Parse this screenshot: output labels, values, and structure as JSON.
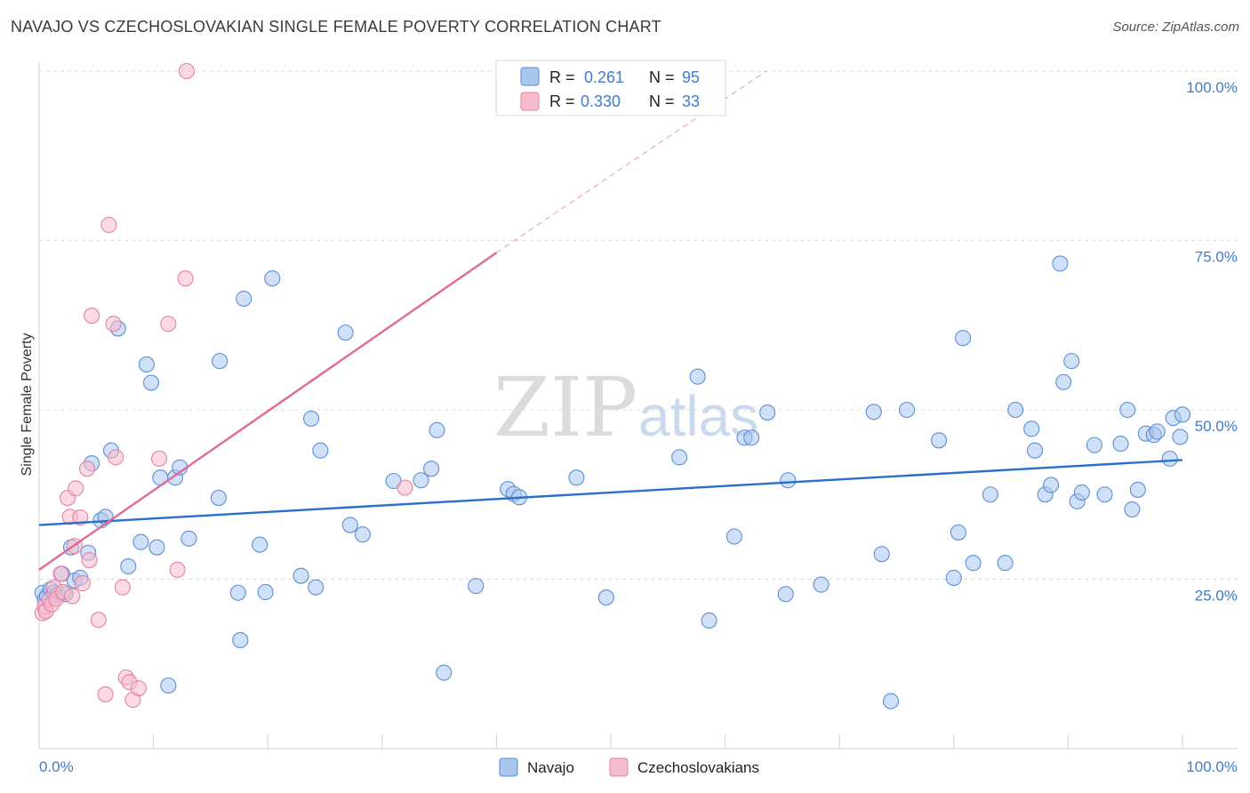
{
  "title": "NAVAJO VS CZECHOSLOVAKIAN SINGLE FEMALE POVERTY CORRELATION CHART",
  "source": "Source: ZipAtlas.com",
  "watermark": {
    "zip": "ZIP",
    "atlas": "atlas"
  },
  "colors": {
    "navajo_fill": "#a9c6ee",
    "navajo_stroke": "#5b8fd6",
    "navajo_line": "#2a6fc9",
    "czech_fill": "#f6bccd",
    "czech_stroke": "#e8819f",
    "czech_line": "#e06a92",
    "grid": "#dcdcdc",
    "axis_text": "#3d7dcc"
  },
  "legend": {
    "rows": [
      {
        "r_label": "R =",
        "r_value": "0.261",
        "n_label": "N =",
        "n_value": "95"
      },
      {
        "r_label": "R =",
        "r_value": "0.330",
        "n_label": "N =",
        "n_value": "33"
      }
    ]
  },
  "chart_data": {
    "type": "scatter",
    "title": "NAVAJO VS CZECHOSLOVAKIAN SINGLE FEMALE POVERTY CORRELATION CHART",
    "xlabel": "",
    "ylabel": "Single Female Poverty",
    "xlim": [
      0,
      100
    ],
    "ylim": [
      0,
      100
    ],
    "x_tick_labels": [
      "0.0%",
      "100.0%"
    ],
    "y_tick_labels": [
      "25.0%",
      "50.0%",
      "75.0%",
      "100.0%"
    ],
    "y_ticks": [
      25,
      50,
      75,
      100
    ],
    "grid": true,
    "legend_position": "bottom-center",
    "series": [
      {
        "name": "Navajo",
        "r": 0.261,
        "n": 95,
        "trend": {
          "x0": 0,
          "y0": 33.0,
          "x1": 100,
          "y1": 42.6
        },
        "points": [
          [
            0.3,
            23
          ],
          [
            0.5,
            22
          ],
          [
            0.7,
            22.5
          ],
          [
            1.0,
            23.5
          ],
          [
            1.3,
            23
          ],
          [
            1.6,
            22.7
          ],
          [
            2.0,
            25.8
          ],
          [
            2.3,
            22.8
          ],
          [
            2.8,
            29.7
          ],
          [
            3.1,
            24.8
          ],
          [
            3.6,
            25.2
          ],
          [
            4.3,
            28.9
          ],
          [
            4.6,
            42.1
          ],
          [
            5.4,
            33.7
          ],
          [
            5.8,
            34.2
          ],
          [
            6.3,
            44.0
          ],
          [
            6.9,
            62.0
          ],
          [
            7.8,
            26.9
          ],
          [
            8.9,
            30.5
          ],
          [
            9.4,
            56.7
          ],
          [
            9.8,
            54.0
          ],
          [
            10.3,
            29.7
          ],
          [
            10.6,
            40.0
          ],
          [
            11.3,
            9.3
          ],
          [
            11.9,
            40.0
          ],
          [
            12.3,
            41.5
          ],
          [
            13.1,
            31.0
          ],
          [
            15.8,
            57.2
          ],
          [
            15.7,
            37.0
          ],
          [
            17.4,
            23.0
          ],
          [
            17.6,
            16.0
          ],
          [
            17.9,
            66.4
          ],
          [
            19.3,
            30.1
          ],
          [
            19.8,
            23.1
          ],
          [
            20.4,
            69.4
          ],
          [
            22.9,
            25.5
          ],
          [
            23.8,
            48.7
          ],
          [
            24.2,
            23.8
          ],
          [
            24.6,
            44.0
          ],
          [
            26.8,
            61.4
          ],
          [
            27.2,
            33.0
          ],
          [
            28.3,
            31.6
          ],
          [
            31.0,
            39.5
          ],
          [
            33.4,
            39.6
          ],
          [
            34.3,
            41.3
          ],
          [
            34.8,
            47.0
          ],
          [
            35.4,
            11.2
          ],
          [
            38.2,
            24.0
          ],
          [
            41.0,
            38.3
          ],
          [
            41.5,
            37.6
          ],
          [
            42.0,
            37.1
          ],
          [
            47.0,
            40.0
          ],
          [
            49.6,
            22.3
          ],
          [
            56.0,
            43.0
          ],
          [
            57.6,
            54.9
          ],
          [
            58.6,
            18.9
          ],
          [
            60.8,
            31.3
          ],
          [
            61.7,
            45.9
          ],
          [
            62.3,
            45.9
          ],
          [
            63.7,
            49.6
          ],
          [
            65.3,
            22.8
          ],
          [
            65.5,
            39.6
          ],
          [
            68.4,
            24.2
          ],
          [
            73.0,
            49.7
          ],
          [
            73.7,
            28.7
          ],
          [
            74.5,
            7.0
          ],
          [
            75.9,
            50.0
          ],
          [
            78.7,
            45.5
          ],
          [
            80.0,
            25.2
          ],
          [
            80.4,
            31.9
          ],
          [
            80.8,
            60.6
          ],
          [
            81.7,
            27.4
          ],
          [
            83.2,
            37.5
          ],
          [
            84.5,
            27.4
          ],
          [
            85.4,
            50.0
          ],
          [
            86.8,
            47.2
          ],
          [
            87.1,
            44.0
          ],
          [
            88.0,
            37.5
          ],
          [
            88.5,
            38.9
          ],
          [
            89.3,
            71.6
          ],
          [
            89.6,
            54.1
          ],
          [
            90.3,
            57.2
          ],
          [
            90.8,
            36.5
          ],
          [
            91.2,
            37.8
          ],
          [
            92.3,
            44.8
          ],
          [
            93.2,
            37.5
          ],
          [
            94.6,
            45.0
          ],
          [
            95.2,
            50.0
          ],
          [
            95.6,
            35.3
          ],
          [
            96.1,
            38.2
          ],
          [
            96.8,
            46.5
          ],
          [
            97.5,
            46.3
          ],
          [
            97.8,
            46.8
          ],
          [
            98.9,
            42.8
          ],
          [
            99.2,
            48.8
          ],
          [
            99.8,
            46.0
          ],
          [
            100.0,
            49.3
          ]
        ]
      },
      {
        "name": "Czechoslovakians",
        "r": 0.33,
        "n": 33,
        "trend": {
          "x0": 0,
          "y0": 26.4,
          "x1": 40,
          "y1": 73.2
        },
        "trend_dashed": {
          "x0": 40,
          "y0": 73.2,
          "x1": 63.6,
          "y1": 100
        },
        "points": [
          [
            0.3,
            20.0
          ],
          [
            0.5,
            21.0
          ],
          [
            0.6,
            20.3
          ],
          [
            0.9,
            22.0
          ],
          [
            1.1,
            21.3
          ],
          [
            1.3,
            23.8
          ],
          [
            1.5,
            22.1
          ],
          [
            1.9,
            25.8
          ],
          [
            2.1,
            23.1
          ],
          [
            2.5,
            37.0
          ],
          [
            2.7,
            34.2
          ],
          [
            2.9,
            22.5
          ],
          [
            3.1,
            29.9
          ],
          [
            3.2,
            38.4
          ],
          [
            3.6,
            34.1
          ],
          [
            3.8,
            24.4
          ],
          [
            4.2,
            41.3
          ],
          [
            4.4,
            27.8
          ],
          [
            4.6,
            63.9
          ],
          [
            5.2,
            19.0
          ],
          [
            5.8,
            8.0
          ],
          [
            6.1,
            77.3
          ],
          [
            6.5,
            62.7
          ],
          [
            6.7,
            43.0
          ],
          [
            7.3,
            23.8
          ],
          [
            7.6,
            10.5
          ],
          [
            7.9,
            9.8
          ],
          [
            8.2,
            7.2
          ],
          [
            8.7,
            8.9
          ],
          [
            10.5,
            42.8
          ],
          [
            11.3,
            62.7
          ],
          [
            12.1,
            26.4
          ],
          [
            12.8,
            69.4
          ],
          [
            12.9,
            100.0
          ],
          [
            32.0,
            38.5
          ]
        ]
      }
    ]
  },
  "bottom_legend": {
    "items": [
      {
        "label": "Navajo"
      },
      {
        "label": "Czechoslovakians"
      }
    ]
  }
}
